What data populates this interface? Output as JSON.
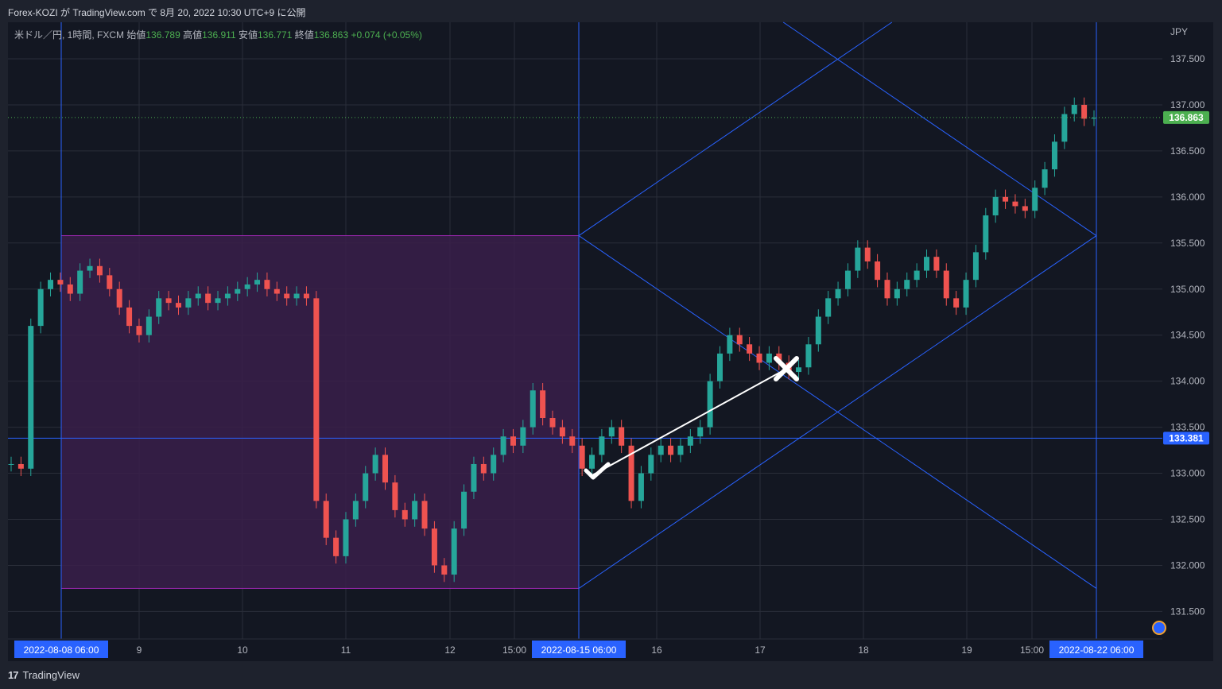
{
  "header": {
    "published_text": "Forex-KOZI が TradingView.com で 8月 20, 2022 10:30 UTC+9 に公開"
  },
  "legend": {
    "symbol": "米ドル／円, 1時間, FXCM",
    "open_label": "始値",
    "open": "136.789",
    "high_label": "高値",
    "high": "136.911",
    "low_label": "安値",
    "low": "136.771",
    "close_label": "終値",
    "close": "136.863",
    "change": "+0.074 (+0.05%)"
  },
  "footer": {
    "brand": "TradingView",
    "brand_icon": "tradingview-logo-icon"
  },
  "colors": {
    "up": "#26a69a",
    "down": "#ef5350",
    "bg": "#131722",
    "grid": "#2a2e39",
    "line": "#2962ff",
    "zone": "#3a1e4a"
  },
  "chart_data": {
    "type": "candlestick",
    "currency": "JPY",
    "ylim": [
      131.2,
      137.8
    ],
    "yticks": [
      "137.500",
      "137.000",
      "136.500",
      "136.000",
      "135.500",
      "135.000",
      "134.500",
      "134.000",
      "133.500",
      "133.000",
      "132.500",
      "132.000",
      "131.500"
    ],
    "xticks": [
      "2022-08-08 06:00",
      "9",
      "10",
      "11",
      "12",
      "15:00",
      "2022-08-15 06:00",
      "16",
      "17",
      "18",
      "19",
      "15:00",
      "2022-08-22 06:00"
    ],
    "price_labels": [
      {
        "text": "136.863",
        "value": 136.863,
        "color": "#4caf50"
      },
      {
        "text": "133.381",
        "value": 133.381,
        "color": "#2962ff"
      }
    ],
    "horizontal_line": 133.381,
    "vertical_lines": [
      "2022-08-08 06:00",
      "2022-08-15 06:00",
      "2022-08-22 06:00"
    ],
    "range_box": {
      "start": "2022-08-08 06:00",
      "end": "2022-08-15 06:00",
      "high": 135.58,
      "low": 131.75
    },
    "closes": [
      133.1,
      133.05,
      134.6,
      135.0,
      135.1,
      135.05,
      134.95,
      135.2,
      135.25,
      135.15,
      135.0,
      134.8,
      134.6,
      134.5,
      134.7,
      134.9,
      134.85,
      134.8,
      134.9,
      134.95,
      134.85,
      134.9,
      134.95,
      135.0,
      135.05,
      135.1,
      135.0,
      134.95,
      134.9,
      134.95,
      134.9,
      132.7,
      132.3,
      132.1,
      132.5,
      132.7,
      133.0,
      133.2,
      132.9,
      132.6,
      132.5,
      132.7,
      132.4,
      132.0,
      131.9,
      132.4,
      132.8,
      133.1,
      133.0,
      133.2,
      133.4,
      133.3,
      133.5,
      133.9,
      133.6,
      133.5,
      133.4,
      133.3,
      133.05,
      133.2,
      133.4,
      133.5,
      133.3,
      132.7,
      133.0,
      133.2,
      133.3,
      133.2,
      133.3,
      133.4,
      133.5,
      134.0,
      134.3,
      134.5,
      134.4,
      134.3,
      134.2,
      134.3,
      134.2,
      134.1,
      134.15,
      134.4,
      134.7,
      134.9,
      135.0,
      135.2,
      135.45,
      135.3,
      135.1,
      134.9,
      135.0,
      135.1,
      135.2,
      135.35,
      135.2,
      134.9,
      134.8,
      135.1,
      135.4,
      135.8,
      136.0,
      135.95,
      135.9,
      135.85,
      136.1,
      136.3,
      136.6,
      136.9,
      137.0,
      136.85,
      136.86
    ]
  },
  "drawings": {
    "check_icon": "checkmark-icon",
    "cross_icon": "x-mark-icon"
  }
}
